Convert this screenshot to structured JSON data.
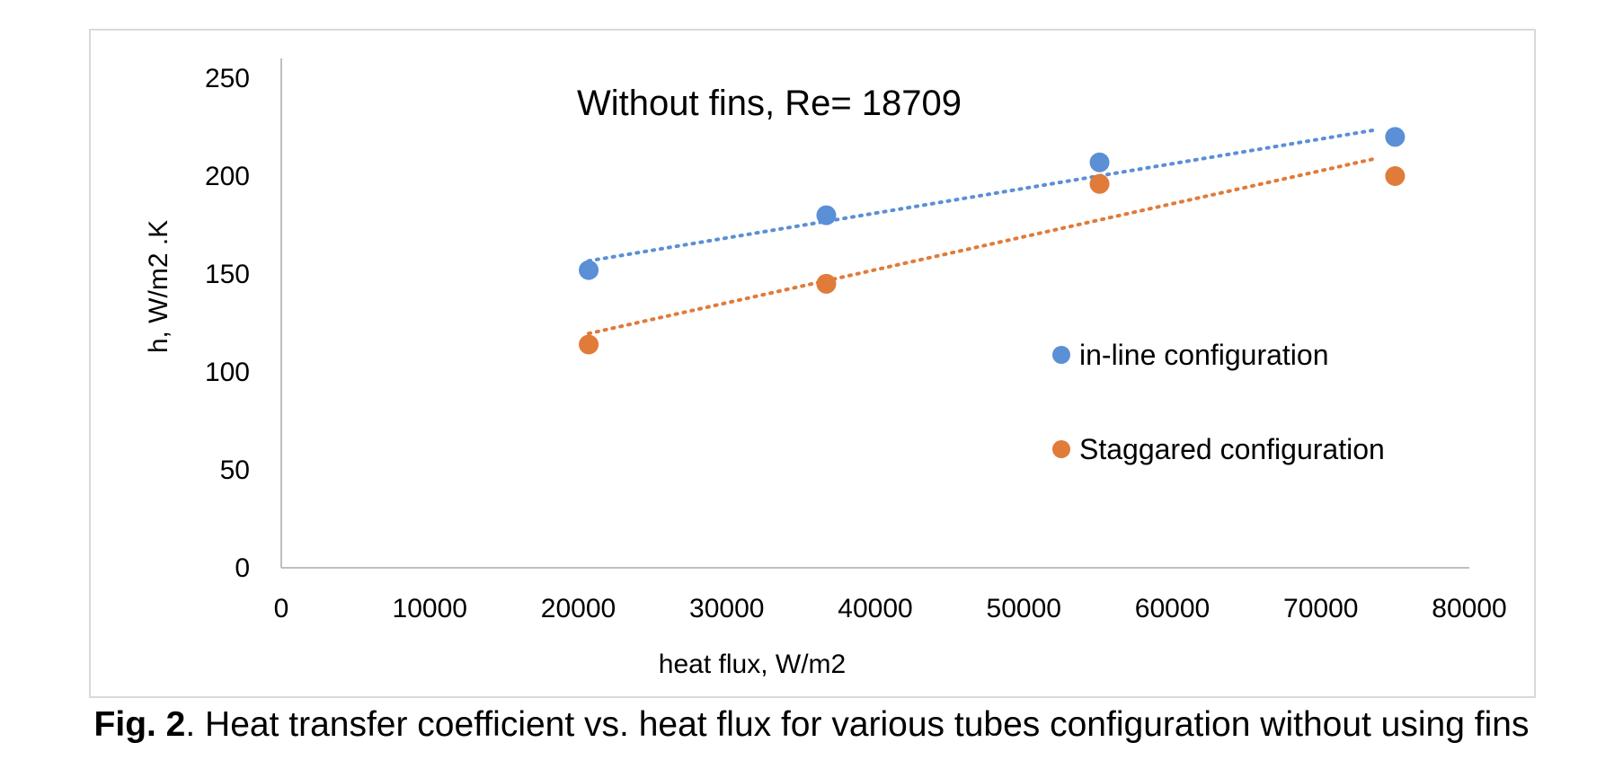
{
  "chart_data": {
    "type": "scatter",
    "title": "Without fins, Re= 18709",
    "xlabel": "heat flux, W/m2",
    "ylabel": "h, W/m2 .K",
    "xlim": [
      0,
      80000
    ],
    "ylim": [
      0,
      250
    ],
    "x_ticks": [
      0,
      10000,
      20000,
      30000,
      40000,
      50000,
      60000,
      70000,
      80000
    ],
    "y_ticks": [
      0,
      50,
      100,
      150,
      200,
      250
    ],
    "grid": false,
    "legend_position": "right",
    "series": [
      {
        "name": "in-line configuration",
        "color": "#5b8fd6",
        "x": [
          20700,
          36700,
          55100,
          75000
        ],
        "y": [
          152,
          180,
          207,
          220
        ],
        "trendline": "linear (dotted)"
      },
      {
        "name": "Staggared configuration",
        "color": "#e07b39",
        "x": [
          20700,
          36700,
          55100,
          75000
        ],
        "y": [
          114,
          145,
          196,
          200
        ],
        "trendline": "linear (dotted)"
      }
    ]
  },
  "caption": {
    "label": "Fig. 2",
    "text": ". Heat transfer coefficient vs. heat flux for various tubes configuration without using fins"
  }
}
